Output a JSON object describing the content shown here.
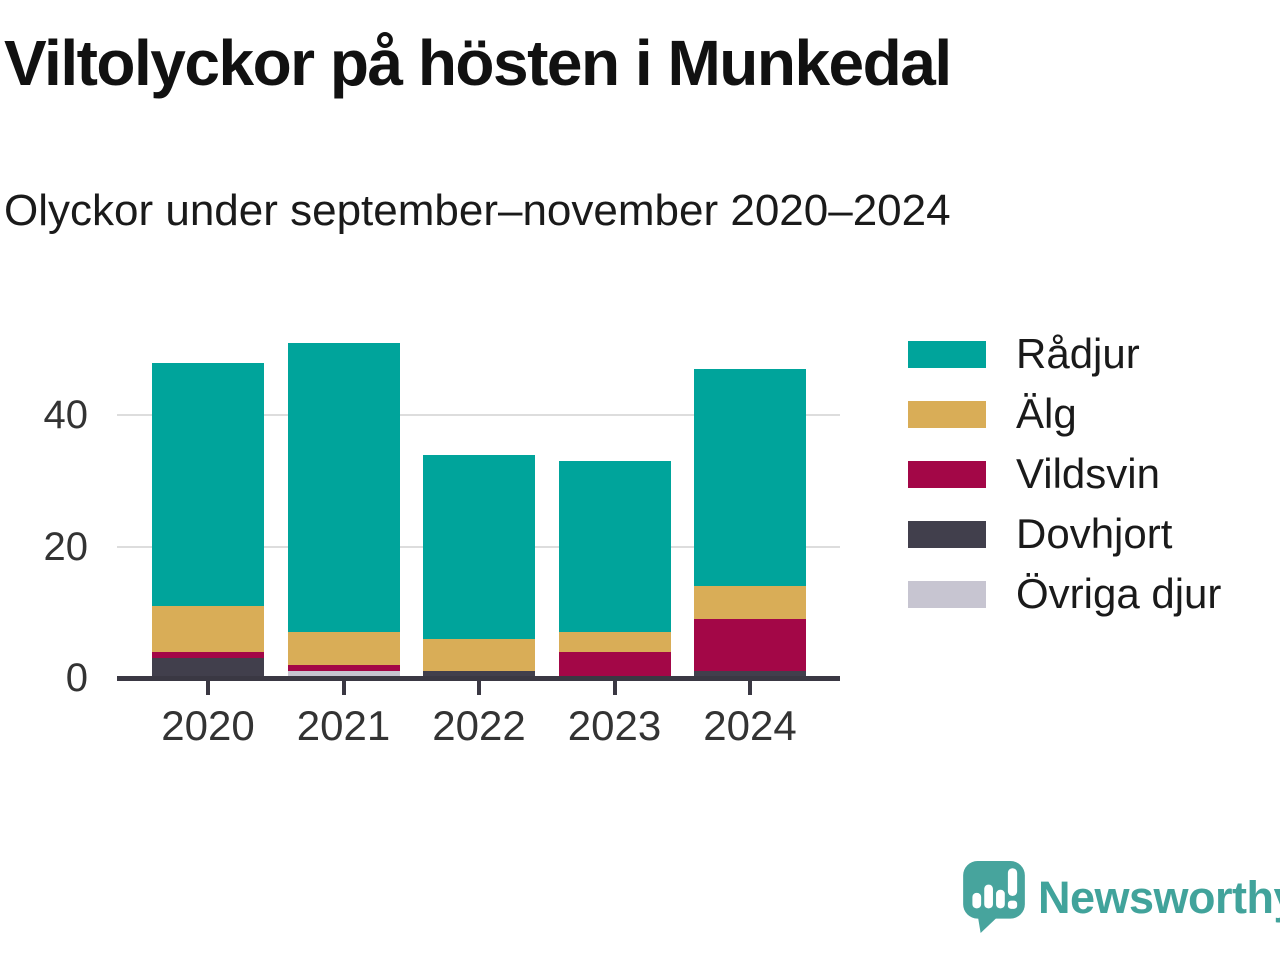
{
  "header": {
    "title": "Viltolyckor på hösten i Munkedal",
    "subtitle": "Olyckor under september–november 2020–2024"
  },
  "chart_data": {
    "type": "bar",
    "stacked": true,
    "title": "Viltolyckor på hösten i Munkedal",
    "subtitle": "Olyckor under september–november 2020–2024",
    "categories": [
      "2020",
      "2021",
      "2022",
      "2023",
      "2024"
    ],
    "series": [
      {
        "name": "Rådjur",
        "color": "#00a49b",
        "values": [
          37,
          44,
          28,
          26,
          33
        ]
      },
      {
        "name": "Älg",
        "color": "#d9ad57",
        "values": [
          7,
          5,
          5,
          3,
          5
        ]
      },
      {
        "name": "Vildsvin",
        "color": "#a30747",
        "values": [
          1,
          1,
          0,
          4,
          8
        ]
      },
      {
        "name": "Dovhjort",
        "color": "#413f4c",
        "values": [
          3,
          0,
          1,
          0,
          1
        ]
      },
      {
        "name": "Övriga djur",
        "color": "#c7c5d1",
        "values": [
          0,
          1,
          0,
          0,
          0
        ]
      }
    ],
    "stack_order_bottom_to_top": [
      "Övriga djur",
      "Dovhjort",
      "Vildsvin",
      "Älg",
      "Rådjur"
    ],
    "totals": [
      48,
      51,
      34,
      33,
      47
    ],
    "xlabel": "",
    "ylabel": "",
    "yticks": [
      0,
      20,
      40
    ],
    "ylim": [
      0,
      52.5
    ],
    "grid": "horizontal",
    "legend_position": "right",
    "colors": {
      "axis": "#3a3843",
      "grid": "#dddddd",
      "tick_text": "#333333",
      "title_text": "#111111",
      "brand": "#41a39b",
      "brand_icon": "#47a49d"
    }
  },
  "footer": {
    "brand": "Newsworthy"
  }
}
